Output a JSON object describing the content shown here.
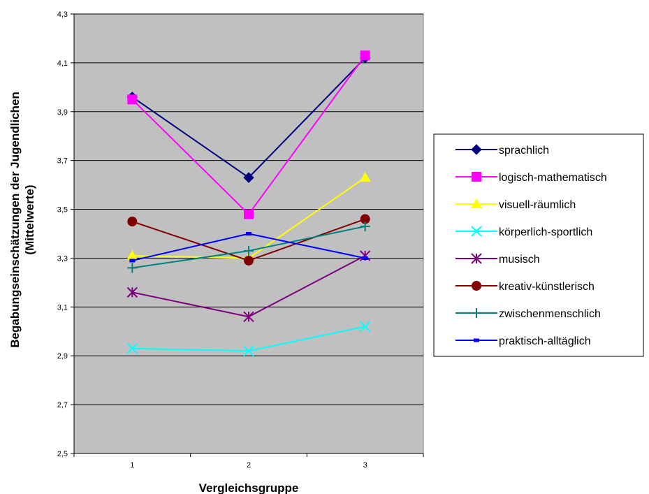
{
  "chart_data": {
    "type": "line",
    "title": "",
    "xlabel": "Vergleichsgruppe",
    "ylabel_line1": "Begabungseinschätzungen der Jugendlichen",
    "ylabel_line2": "(Mittelwerte)",
    "categories": [
      "1",
      "2",
      "3"
    ],
    "ylim": [
      2.5,
      4.3
    ],
    "yticks": [
      {
        "value": 2.5,
        "label": "2,5"
      },
      {
        "value": 2.7,
        "label": "2,7"
      },
      {
        "value": 2.9,
        "label": "2,9"
      },
      {
        "value": 3.1,
        "label": "3,1"
      },
      {
        "value": 3.3,
        "label": "3,3"
      },
      {
        "value": 3.5,
        "label": "3,5"
      },
      {
        "value": 3.7,
        "label": "3,7"
      },
      {
        "value": 3.9,
        "label": "3,9"
      },
      {
        "value": 4.1,
        "label": "4,1"
      },
      {
        "value": 4.3,
        "label": "4,3"
      }
    ],
    "grid": true,
    "plot_background": "#c0c0c0",
    "legend_position": "right",
    "series": [
      {
        "name": "sprachlich",
        "values": [
          3.96,
          3.63,
          4.12
        ],
        "color": "#000080",
        "marker": "diamond"
      },
      {
        "name": "logisch-mathematisch",
        "values": [
          3.95,
          3.48,
          4.13
        ],
        "color": "#ff00ff",
        "marker": "square"
      },
      {
        "name": "visuell-räumlich",
        "values": [
          3.31,
          3.3,
          3.63
        ],
        "color": "#ffff00",
        "marker": "triangle"
      },
      {
        "name": "körperlich-sportlich",
        "values": [
          2.93,
          2.92,
          3.02
        ],
        "color": "#00ffff",
        "marker": "x"
      },
      {
        "name": "musisch",
        "values": [
          3.16,
          3.06,
          3.31
        ],
        "color": "#800080",
        "marker": "star"
      },
      {
        "name": "kreativ-künstlerisch",
        "values": [
          3.45,
          3.29,
          3.46
        ],
        "color": "#800000",
        "marker": "circle"
      },
      {
        "name": "zwischenmenschlich",
        "values": [
          3.26,
          3.33,
          3.43
        ],
        "color": "#008080",
        "marker": "plus"
      },
      {
        "name": "praktisch-alltäglich",
        "values": [
          3.29,
          3.4,
          3.3
        ],
        "color": "#0000ff",
        "marker": "dash"
      }
    ]
  }
}
